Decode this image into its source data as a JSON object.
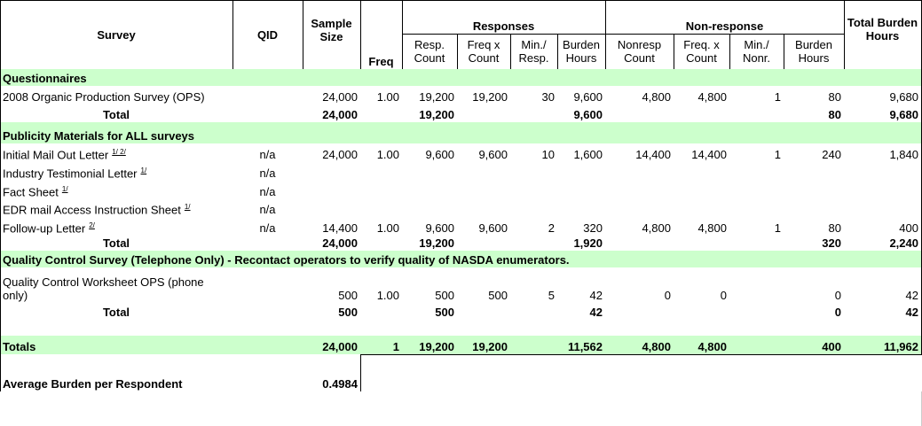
{
  "header": {
    "survey": "Survey",
    "qid": "QID",
    "sample_size": "Sample Size",
    "freq": "Freq",
    "responses": "Responses",
    "resp_count": "Resp. Count",
    "freq_x_count": "Freq x Count",
    "min_resp": "Min./ Resp.",
    "burden_hours": "Burden Hours",
    "non_response": "Non-response",
    "nonresp_count": "Nonresp Count",
    "freq_x_count_nr": "Freq. x Count",
    "min_nonr": "Min./ Nonr.",
    "burden_hours_nr": "Burden Hours",
    "total_burden_hours": "Total Burden Hours"
  },
  "table": {
    "rows": [
      {
        "cells": [
          "Questionnaires"
        ]
      },
      {
        "cells": [
          "2008 Organic Production Survey (OPS)",
          null,
          "24,000",
          "1.00",
          "19,200",
          "19,200",
          "30",
          "9,600",
          "4,800",
          "4,800",
          "1",
          "80",
          "9,680"
        ]
      },
      {
        "cells": [
          "Total",
          null,
          "24,000",
          null,
          "19,200",
          null,
          null,
          "9,600",
          null,
          null,
          null,
          "80",
          "9,680"
        ]
      },
      {
        "cells": [
          "Publicity Materials for ALL surveys"
        ]
      },
      {
        "cells": [
          "Initial Mail Out Letter",
          "n/a",
          "24,000",
          "1.00",
          "9,600",
          "9,600",
          "10",
          "1,600",
          "14,400",
          "14,400",
          "1",
          "240",
          "1,840"
        ],
        "note": "1/ 2/"
      },
      {
        "cells": [
          "Industry Testimonial Letter",
          "n/a"
        ],
        "note": "1/"
      },
      {
        "cells": [
          "Fact Sheet",
          "n/a"
        ],
        "note": "1/"
      },
      {
        "cells": [
          "EDR mail Access Instruction Sheet",
          "n/a"
        ],
        "note": "1/"
      },
      {
        "cells": [
          "Follow-up Letter",
          "n/a",
          "14,400",
          "1.00",
          "9,600",
          "9,600",
          "2",
          "320",
          "4,800",
          "4,800",
          "1",
          "80",
          "400"
        ],
        "note": "2/"
      },
      {
        "cells": [
          "Total",
          null,
          "24,000",
          null,
          "19,200",
          null,
          null,
          "1,920",
          null,
          null,
          null,
          "320",
          "2,240"
        ]
      },
      {
        "cells": [
          "Quality Control Survey (Telephone Only) - Recontact operators to verify quality of NASDA enumerators."
        ]
      },
      {
        "cells": [
          "Quality Control Worksheet OPS (phone only)",
          null,
          "500",
          "1.00",
          "500",
          "500",
          "5",
          "42",
          "0",
          "0",
          null,
          "0",
          "42"
        ]
      },
      {
        "cells": [
          "Total",
          null,
          "500",
          null,
          "500",
          null,
          null,
          "42",
          null,
          null,
          null,
          "0",
          "42"
        ]
      },
      {
        "cells": []
      },
      {
        "cells": [
          "Totals",
          null,
          "24,000",
          "1",
          "19,200",
          "19,200",
          null,
          "11,562",
          "4,800",
          "4,800",
          null,
          "400",
          "11,962"
        ]
      },
      {
        "cells": []
      },
      {
        "cells": [
          "Average Burden per Respondent",
          null,
          "0.4984"
        ]
      },
      {
        "cells": []
      },
      {
        "cells": []
      }
    ]
  }
}
